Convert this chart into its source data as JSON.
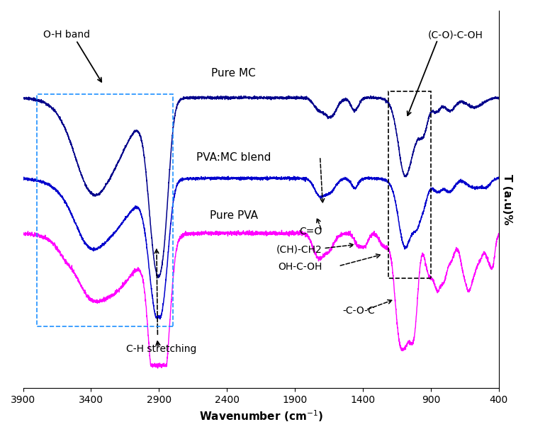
{
  "mc_color": "#00008B",
  "blend_color": "#0000CD",
  "pva_color": "#FF00FF",
  "xlabel": "Wavenumber (cm$^{-1}$)",
  "ylabel": "T (a.u)%",
  "xticks": [
    3900,
    3400,
    2900,
    2400,
    1900,
    1400,
    900,
    400
  ],
  "xlim": [
    3900,
    400
  ],
  "mc_baseline": 0.78,
  "blend_baseline": 0.52,
  "pva_baseline": 0.34
}
